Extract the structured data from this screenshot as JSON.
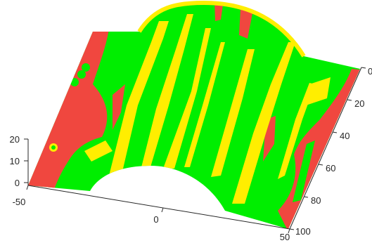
{
  "chart_data": {
    "type": "surface",
    "title": "",
    "xlabel": "",
    "ylabel": "",
    "zlabel": "",
    "x_ticks": [
      "-50",
      "0",
      "50"
    ],
    "y_ticks": [
      "0",
      "20",
      "40",
      "60",
      "80",
      "100"
    ],
    "z_ticks": [
      "0",
      "10",
      "20"
    ],
    "xlim": [
      -50,
      50
    ],
    "ylim": [
      0,
      100
    ],
    "zlim": [
      0,
      20
    ],
    "surface_description": "Saddle-shaped surface with a raised ridge along the middle; colored by category",
    "category_colors": {
      "red": "#f0473f",
      "green": "#00ee00",
      "yellow": "#ffee00"
    },
    "grid": false,
    "view": "3d"
  }
}
